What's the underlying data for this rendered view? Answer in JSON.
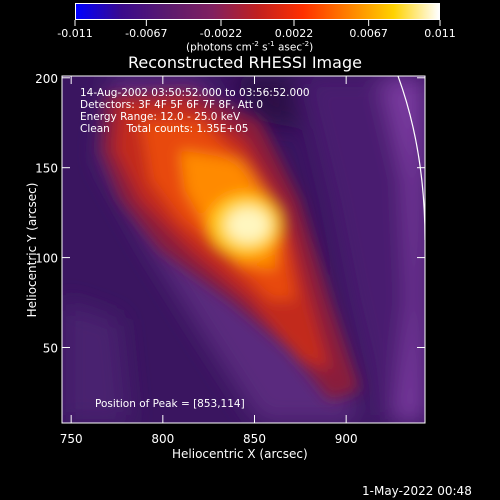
{
  "colorbar": {
    "gradient": [
      "#0000ff",
      "#3a0a8c",
      "#5a1a6e",
      "#802060",
      "#c02020",
      "#ff3000",
      "#ff8000",
      "#ffd200",
      "#ffffff"
    ],
    "ticks": [
      "-0.011",
      "-0.0067",
      "-0.0022",
      "0.0022",
      "0.0067",
      "0.011"
    ],
    "units_text": "(photons cm",
    "units_sup1": "-2",
    "units_mid": " s",
    "units_sup2": "-1",
    "units_end": " asec",
    "units_sup3": "-2",
    "units_close": ")"
  },
  "chart_data": {
    "type": "heatmap",
    "title": "Reconstructed RHESSI Image",
    "xlabel": "Heliocentric X (arcsec)",
    "ylabel": "Heliocentric Y (arcsec)",
    "xlim": [
      745,
      943
    ],
    "ylim": [
      8,
      201
    ],
    "x_ticks": [
      750,
      800,
      850,
      900
    ],
    "y_ticks": [
      50,
      100,
      150,
      200
    ],
    "colorbar_range": [
      -0.011,
      0.011
    ],
    "peak": [
      853,
      114
    ],
    "annotations": [
      "14-Aug-2002 03:50:52.000 to 03:56:52.000",
      "Detectors: 3F 4F 5F 6F 7F 8F, Att 0",
      "Energy Range: 12.0 - 25.0 keV",
      "Clean     Total counts: 1.35E+05"
    ],
    "peak_label": "Position of Peak = [853,114]"
  },
  "footer": {
    "timestamp": "1-May-2022 00:48"
  }
}
